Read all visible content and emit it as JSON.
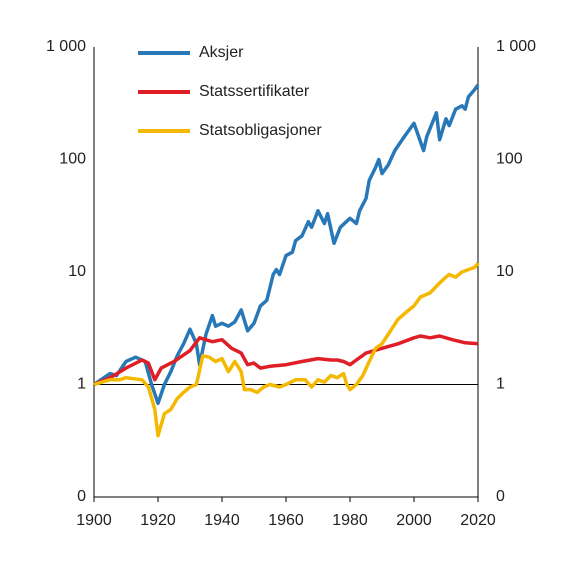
{
  "chart_data": {
    "type": "line",
    "xlim": [
      1900,
      2020
    ],
    "xticks": [
      1900,
      1920,
      1940,
      1960,
      1980,
      2000,
      2020
    ],
    "ylim": [
      0.1,
      1000
    ],
    "log_y": true,
    "yticks": [
      {
        "value": 0.1,
        "label": "0"
      },
      1,
      10,
      100,
      {
        "value": 1000,
        "label": "1 000"
      }
    ],
    "y2lim": [
      0.1,
      1000
    ],
    "y2ticks": [
      {
        "value": 0.1,
        "label": "0"
      },
      1,
      10,
      100,
      {
        "value": 1000,
        "label": "1 000"
      }
    ],
    "legend": "upper left",
    "series": [
      {
        "name": "Aksjer",
        "color": "#2878b8",
        "x": [
          1900,
          1905,
          1907,
          1910,
          1913,
          1916,
          1918,
          1920,
          1922,
          1924,
          1926,
          1928,
          1930,
          1932,
          1933,
          1935,
          1937,
          1938,
          1940,
          1942,
          1944,
          1946,
          1948,
          1950,
          1952,
          1954,
          1956,
          1957,
          1958,
          1960,
          1962,
          1963,
          1965,
          1967,
          1968,
          1970,
          1972,
          1973,
          1975,
          1977,
          1980,
          1982,
          1983,
          1985,
          1986,
          1988,
          1989,
          1990,
          1992,
          1994,
          1997,
          2000,
          2003,
          2004,
          2007,
          2008,
          2010,
          2011,
          2013,
          2015,
          2016,
          2017,
          2019,
          2020
        ],
        "values": [
          1,
          1.25,
          1.2,
          1.6,
          1.75,
          1.6,
          1.0,
          0.68,
          1.0,
          1.3,
          1.8,
          2.3,
          3.1,
          2.3,
          1.5,
          2.8,
          4.1,
          3.3,
          3.5,
          3.3,
          3.6,
          4.6,
          3.0,
          3.5,
          5.0,
          5.6,
          9.5,
          10.5,
          9.5,
          14,
          15,
          19,
          21,
          28,
          25,
          35,
          27,
          33,
          18,
          25,
          30,
          27,
          35,
          45,
          65,
          85,
          100,
          75,
          90,
          120,
          160,
          210,
          120,
          160,
          260,
          150,
          230,
          200,
          280,
          300,
          280,
          360,
          420,
          460
        ]
      },
      {
        "name": "Statssertifikater",
        "color": "#e01e26",
        "x": [
          1900,
          1905,
          1910,
          1915,
          1917,
          1919,
          1921,
          1925,
          1930,
          1933,
          1937,
          1940,
          1943,
          1946,
          1948,
          1950,
          1952,
          1955,
          1960,
          1965,
          1970,
          1974,
          1976,
          1978,
          1980,
          1982,
          1985,
          1990,
          1995,
          2000,
          2002,
          2005,
          2008,
          2012,
          2016,
          2020
        ],
        "values": [
          1,
          1.15,
          1.4,
          1.65,
          1.55,
          1.1,
          1.4,
          1.6,
          2.0,
          2.6,
          2.4,
          2.5,
          2.1,
          1.9,
          1.5,
          1.55,
          1.4,
          1.45,
          1.5,
          1.6,
          1.7,
          1.65,
          1.65,
          1.6,
          1.5,
          1.65,
          1.9,
          2.1,
          2.3,
          2.6,
          2.7,
          2.6,
          2.7,
          2.5,
          2.35,
          2.3
        ]
      },
      {
        "name": "Statsobligasjoner",
        "color": "#f5b800",
        "x": [
          1900,
          1905,
          1908,
          1910,
          1915,
          1917,
          1919,
          1920,
          1922,
          1924,
          1926,
          1928,
          1930,
          1932,
          1934,
          1936,
          1938,
          1940,
          1942,
          1944,
          1946,
          1947,
          1949,
          1951,
          1953,
          1955,
          1958,
          1960,
          1963,
          1966,
          1968,
          1970,
          1972,
          1974,
          1976,
          1978,
          1979,
          1980,
          1982,
          1984,
          1986,
          1988,
          1990,
          1993,
          1995,
          1998,
          2000,
          2002,
          2005,
          2008,
          2010,
          2011,
          2013,
          2015,
          2017,
          2019,
          2020
        ],
        "values": [
          1,
          1.1,
          1.1,
          1.15,
          1.1,
          0.95,
          0.6,
          0.35,
          0.55,
          0.6,
          0.75,
          0.85,
          0.95,
          1.0,
          1.8,
          1.75,
          1.6,
          1.7,
          1.3,
          1.6,
          1.3,
          0.9,
          0.9,
          0.85,
          0.95,
          1.0,
          0.95,
          1.0,
          1.1,
          1.1,
          0.95,
          1.1,
          1.05,
          1.2,
          1.15,
          1.25,
          1.0,
          0.9,
          1.0,
          1.2,
          1.6,
          2.1,
          2.3,
          3.1,
          3.8,
          4.5,
          5.0,
          6.0,
          6.5,
          8.0,
          9.0,
          9.5,
          9.0,
          10,
          10.5,
          11,
          12
        ]
      }
    ]
  }
}
